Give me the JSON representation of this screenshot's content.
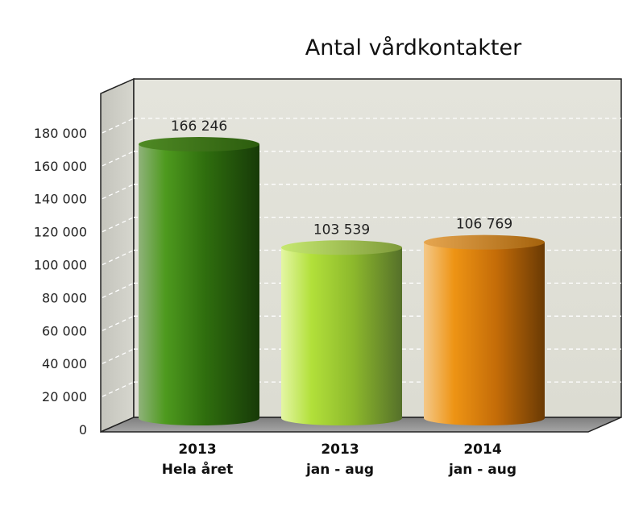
{
  "chart_data": {
    "type": "bar",
    "style": "3d-cylinder",
    "title": "Antal vårdkontakter",
    "xlabel": "",
    "ylabel": "",
    "categories": [
      [
        "2013",
        "Hela året"
      ],
      [
        "2013",
        "jan - aug"
      ],
      [
        "2014",
        "jan - aug"
      ]
    ],
    "values": [
      166246,
      103539,
      106769
    ],
    "data_labels": [
      "166 246",
      "103 539",
      "106 769"
    ],
    "bar_colors": [
      "#2f6a10",
      "#9fce2c",
      "#e08a10"
    ],
    "ylim": [
      0,
      180000
    ],
    "y_ticks": [
      0,
      20000,
      40000,
      60000,
      80000,
      100000,
      120000,
      140000,
      160000,
      180000
    ],
    "y_tick_labels": [
      "0",
      "20 000",
      "40 000",
      "60 000",
      "80 000",
      "100 000",
      "120 000",
      "140 000",
      "160 000",
      "180 000"
    ],
    "grid": true,
    "legend": "none"
  }
}
